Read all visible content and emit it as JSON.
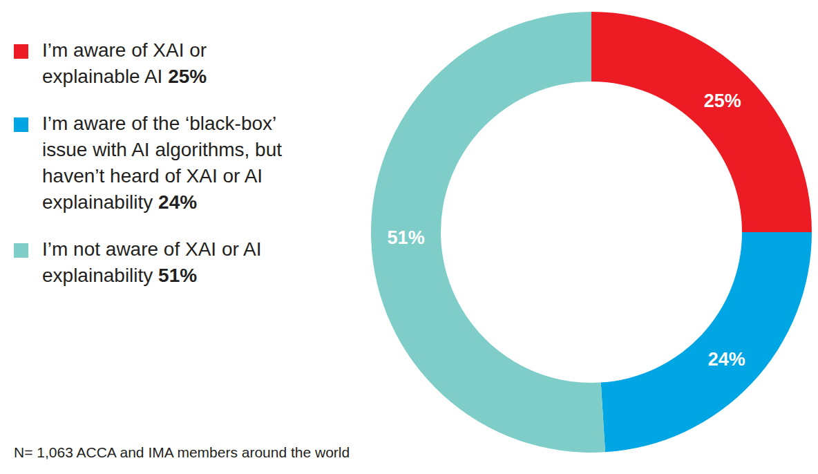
{
  "chart_data": {
    "type": "pie",
    "categories": [
      "I’m aware of XAI or explainable AI",
      "I’m aware of the ‘black-box’ issue with AI algorithms, but haven’t heard of XAI or AI explainability",
      "I’m not aware of XAI or AI explainability"
    ],
    "values": [
      25,
      24,
      51
    ],
    "value_labels": [
      "25%",
      "24%",
      "51%"
    ],
    "colors": [
      "#ed1c24",
      "#00a5e3",
      "#7ecdc8"
    ],
    "data_labels": true,
    "annotation": "N= 1,063 ACCA and IMA members around the world"
  }
}
